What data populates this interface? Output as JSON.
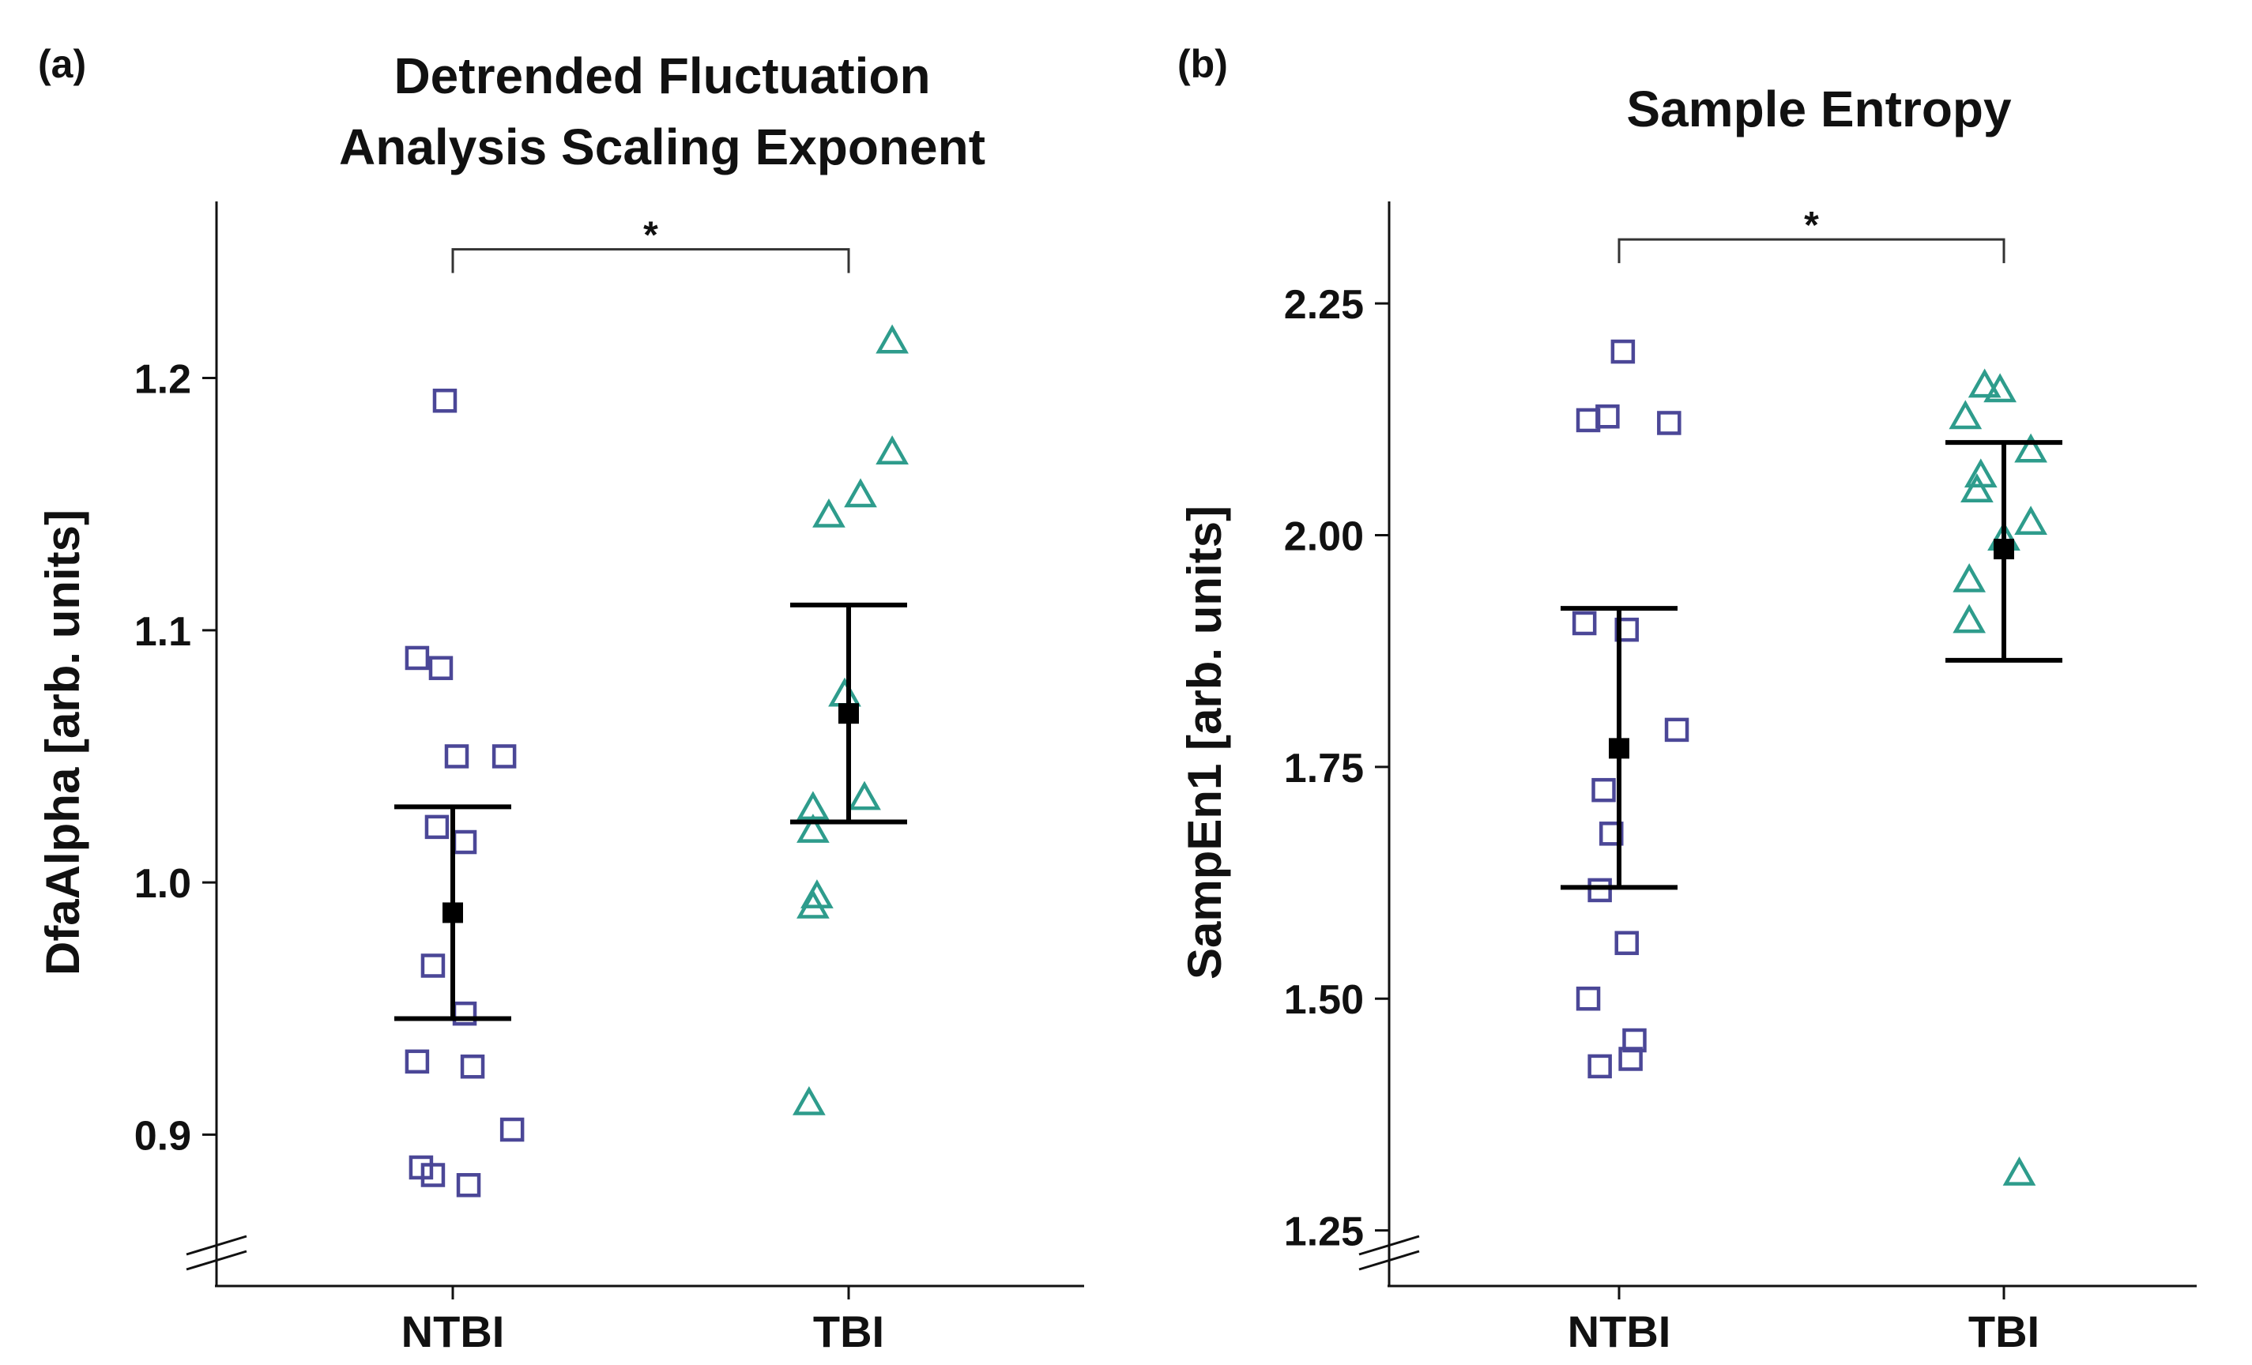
{
  "colors": {
    "ntbi": "#4b4797",
    "tbi": "#2e9c8c",
    "mean": "#000000",
    "axis": "#111111"
  },
  "chart_data": [
    {
      "type": "scatter",
      "panel_label": "(a)",
      "title_lines": [
        "Detrended Fluctuation",
        "Analysis Scaling Exponent"
      ],
      "ylabel": "DfaAlpha [arb. units]",
      "ylim": [
        0.84,
        1.27
      ],
      "yticks": [
        0.9,
        1.0,
        1.1,
        1.2
      ],
      "ytick_labels": [
        "0.9",
        "1.0",
        "1.1",
        "1.2"
      ],
      "axis_break": true,
      "categories": [
        "NTBI",
        "TBI"
      ],
      "significance": {
        "from": "NTBI",
        "to": "TBI",
        "label": "*",
        "y": 1.251
      },
      "series": [
        {
          "name": "NTBI",
          "marker": "square",
          "color_key": "ntbi",
          "mean": 0.988,
          "error_low": 0.946,
          "error_high": 1.03,
          "points": [
            {
              "x_offset": -0.02,
              "y": 1.191
            },
            {
              "x_offset": -0.09,
              "y": 1.089
            },
            {
              "x_offset": -0.03,
              "y": 1.085
            },
            {
              "x_offset": 0.01,
              "y": 1.05
            },
            {
              "x_offset": 0.13,
              "y": 1.05
            },
            {
              "x_offset": -0.04,
              "y": 1.022
            },
            {
              "x_offset": 0.03,
              "y": 1.016
            },
            {
              "x_offset": -0.05,
              "y": 0.967
            },
            {
              "x_offset": 0.03,
              "y": 0.948
            },
            {
              "x_offset": -0.09,
              "y": 0.929
            },
            {
              "x_offset": 0.05,
              "y": 0.927
            },
            {
              "x_offset": 0.15,
              "y": 0.902
            },
            {
              "x_offset": -0.08,
              "y": 0.887
            },
            {
              "x_offset": -0.05,
              "y": 0.884
            },
            {
              "x_offset": 0.04,
              "y": 0.88
            }
          ]
        },
        {
          "name": "TBI",
          "marker": "triangle",
          "color_key": "tbi",
          "mean": 1.067,
          "error_low": 1.024,
          "error_high": 1.11,
          "points": [
            {
              "x_offset": 0.11,
              "y": 1.214
            },
            {
              "x_offset": 0.11,
              "y": 1.17
            },
            {
              "x_offset": 0.03,
              "y": 1.153
            },
            {
              "x_offset": -0.05,
              "y": 1.145
            },
            {
              "x_offset": -0.01,
              "y": 1.074
            },
            {
              "x_offset": 0.04,
              "y": 1.033
            },
            {
              "x_offset": -0.09,
              "y": 1.029
            },
            {
              "x_offset": -0.09,
              "y": 1.02
            },
            {
              "x_offset": -0.08,
              "y": 0.994
            },
            {
              "x_offset": -0.09,
              "y": 0.99
            },
            {
              "x_offset": -0.1,
              "y": 0.912
            }
          ]
        }
      ]
    },
    {
      "type": "scatter",
      "panel_label": "(b)",
      "title_lines": [
        "Sample Entropy"
      ],
      "ylabel": "SampEn1 [arb. units]",
      "ylim": [
        1.19,
        2.36
      ],
      "yticks": [
        1.25,
        1.5,
        1.75,
        2.0,
        2.25
      ],
      "ytick_labels": [
        "1.25",
        "1.50",
        "1.75",
        "2.00",
        "2.25"
      ],
      "axis_break": true,
      "categories": [
        "NTBI",
        "TBI"
      ],
      "significance": {
        "from": "NTBI",
        "to": "TBI",
        "label": "*",
        "y": 2.319
      },
      "series": [
        {
          "name": "NTBI",
          "marker": "square",
          "color_key": "ntbi",
          "mean": 1.77,
          "error_low": 1.62,
          "error_high": 1.921,
          "points": [
            {
              "x_offset": 0.01,
              "y": 2.198
            },
            {
              "x_offset": -0.03,
              "y": 2.128
            },
            {
              "x_offset": -0.08,
              "y": 2.124
            },
            {
              "x_offset": 0.13,
              "y": 2.121
            },
            {
              "x_offset": -0.09,
              "y": 1.905
            },
            {
              "x_offset": 0.02,
              "y": 1.898
            },
            {
              "x_offset": 0.15,
              "y": 1.79
            },
            {
              "x_offset": -0.04,
              "y": 1.725
            },
            {
              "x_offset": -0.02,
              "y": 1.678
            },
            {
              "x_offset": -0.05,
              "y": 1.617
            },
            {
              "x_offset": 0.02,
              "y": 1.56
            },
            {
              "x_offset": -0.08,
              "y": 1.5
            },
            {
              "x_offset": 0.04,
              "y": 1.455
            },
            {
              "x_offset": 0.03,
              "y": 1.435
            },
            {
              "x_offset": -0.05,
              "y": 1.427
            }
          ]
        },
        {
          "name": "TBI",
          "marker": "triangle",
          "color_key": "tbi",
          "mean": 1.985,
          "error_low": 1.865,
          "error_high": 2.1,
          "points": [
            {
              "x_offset": -0.05,
              "y": 2.16
            },
            {
              "x_offset": -0.01,
              "y": 2.155
            },
            {
              "x_offset": -0.1,
              "y": 2.126
            },
            {
              "x_offset": 0.07,
              "y": 2.09
            },
            {
              "x_offset": -0.06,
              "y": 2.063
            },
            {
              "x_offset": -0.07,
              "y": 2.047
            },
            {
              "x_offset": 0.07,
              "y": 2.012
            },
            {
              "x_offset": 0.0,
              "y": 1.995
            },
            {
              "x_offset": -0.09,
              "y": 1.95
            },
            {
              "x_offset": -0.09,
              "y": 1.906
            },
            {
              "x_offset": 0.04,
              "y": 1.31
            }
          ]
        }
      ]
    }
  ]
}
